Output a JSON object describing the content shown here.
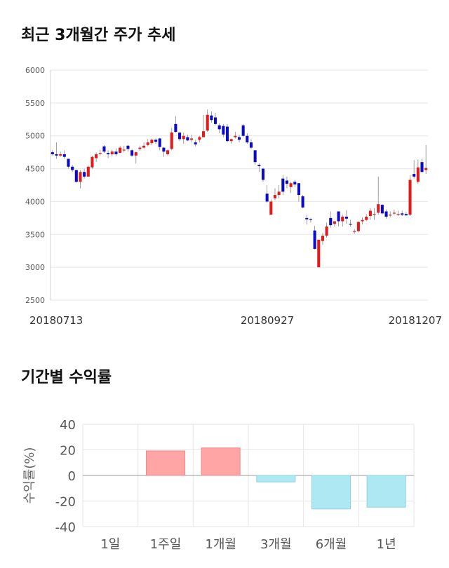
{
  "sections": {
    "price_title": "최근 3개월간 주가 추세",
    "returns_title": "기간별 수익률"
  },
  "colors": {
    "up": "#e01b1b",
    "down": "#0c0cc8",
    "pos_bar": "#ffa5a5",
    "neg_bar": "#aee8f2",
    "grid": "#e6e6e6"
  },
  "chart_data": [
    {
      "type": "candlestick",
      "title": "최근 3개월간 주가 추세",
      "ylim": [
        2500,
        6000
      ],
      "yticks": [
        "6000",
        "5500",
        "5000",
        "4500",
        "4000",
        "3500",
        "3000",
        "2500"
      ],
      "xticks": [
        "20180713",
        "20180927",
        "20181207"
      ],
      "ohlc": [
        [
          4750,
          4780,
          4700,
          4720
        ],
        [
          4720,
          4900,
          4650,
          4700
        ],
        [
          4700,
          4760,
          4680,
          4720
        ],
        [
          4720,
          4780,
          4650,
          4680
        ],
        [
          4650,
          4650,
          4500,
          4530
        ],
        [
          4530,
          4560,
          4450,
          4480
        ],
        [
          4480,
          4480,
          4290,
          4300
        ],
        [
          4300,
          4480,
          4200,
          4450
        ],
        [
          4450,
          4500,
          4350,
          4380
        ],
        [
          4380,
          4550,
          4380,
          4530
        ],
        [
          4520,
          4700,
          4500,
          4680
        ],
        [
          4660,
          4750,
          4600,
          4720
        ],
        [
          4740,
          4790,
          4700,
          4740
        ],
        [
          4840,
          4860,
          4740,
          4760
        ],
        [
          4740,
          4780,
          4660,
          4720
        ],
        [
          4720,
          4790,
          4690,
          4760
        ],
        [
          4760,
          4810,
          4700,
          4720
        ],
        [
          4740,
          4850,
          4740,
          4820
        ],
        [
          4780,
          4850,
          4750,
          4790
        ],
        [
          4850,
          4860,
          4760,
          4800
        ],
        [
          4780,
          4800,
          4680,
          4700
        ],
        [
          4700,
          4760,
          4580,
          4750
        ],
        [
          4800,
          4850,
          4770,
          4820
        ],
        [
          4820,
          4900,
          4800,
          4850
        ],
        [
          4860,
          4950,
          4840,
          4900
        ],
        [
          4890,
          4960,
          4860,
          4940
        ],
        [
          4940,
          4960,
          4880,
          4910
        ],
        [
          4960,
          4970,
          4780,
          4830
        ],
        [
          4820,
          4830,
          4680,
          4760
        ],
        [
          4720,
          4800,
          4700,
          4780
        ],
        [
          4800,
          5120,
          4780,
          5050
        ],
        [
          5180,
          5300,
          5050,
          5060
        ],
        [
          5050,
          5050,
          4920,
          4950
        ],
        [
          4950,
          5050,
          4880,
          5000
        ],
        [
          4980,
          5020,
          4920,
          4930
        ],
        [
          4940,
          5020,
          4900,
          4960
        ],
        [
          4900,
          4940,
          4840,
          4870
        ],
        [
          4940,
          5000,
          4900,
          4980
        ],
        [
          4980,
          5320,
          4980,
          5070
        ],
        [
          5080,
          5400,
          5060,
          5320
        ],
        [
          5310,
          5370,
          5200,
          5240
        ],
        [
          5280,
          5350,
          5160,
          5180
        ],
        [
          5160,
          5190,
          5040,
          5100
        ],
        [
          5150,
          5180,
          4980,
          5020
        ],
        [
          5140,
          5180,
          4900,
          4920
        ],
        [
          4920,
          4960,
          4880,
          4950
        ],
        [
          4980,
          5060,
          4960,
          5000
        ],
        [
          4980,
          5020,
          4900,
          4940
        ],
        [
          5160,
          5180,
          4980,
          5000
        ],
        [
          5000,
          5040,
          4880,
          4900
        ],
        [
          4900,
          4950,
          4800,
          4820
        ],
        [
          4780,
          4780,
          4560,
          4600
        ],
        [
          4560,
          4580,
          4450,
          4540
        ],
        [
          4500,
          4510,
          4300,
          4330
        ],
        [
          4120,
          4250,
          3980,
          4000
        ],
        [
          3800,
          4030,
          3800,
          4000
        ],
        [
          4050,
          4200,
          4020,
          4100
        ],
        [
          4100,
          4250,
          4050,
          4150
        ],
        [
          4350,
          4400,
          4100,
          4150
        ],
        [
          4320,
          4380,
          4200,
          4270
        ],
        [
          4220,
          4300,
          4130,
          4280
        ],
        [
          4300,
          4330,
          4220,
          4260
        ],
        [
          4280,
          4280,
          4000,
          4100
        ],
        [
          4080,
          4100,
          3900,
          3910
        ],
        [
          3750,
          3800,
          3650,
          3730
        ],
        [
          3730,
          3750,
          3680,
          3720
        ],
        [
          3560,
          3630,
          3270,
          3280
        ],
        [
          3000,
          3400,
          3000,
          3420
        ],
        [
          3400,
          3520,
          3340,
          3480
        ],
        [
          3480,
          3680,
          3450,
          3620
        ],
        [
          3750,
          3850,
          3600,
          3640
        ],
        [
          3660,
          3700,
          3620,
          3700
        ],
        [
          3850,
          3850,
          3620,
          3700
        ],
        [
          3700,
          3800,
          3620,
          3770
        ],
        [
          3770,
          3870,
          3660,
          3740
        ],
        [
          3660,
          3720,
          3620,
          3650
        ],
        [
          3540,
          3580,
          3510,
          3550
        ],
        [
          3550,
          3700,
          3530,
          3690
        ],
        [
          3700,
          3760,
          3650,
          3720
        ],
        [
          3720,
          3810,
          3700,
          3770
        ],
        [
          3780,
          3900,
          3720,
          3860
        ],
        [
          3800,
          3900,
          3720,
          3810
        ],
        [
          3830,
          4380,
          3800,
          3960
        ],
        [
          3950,
          3960,
          3800,
          3820
        ],
        [
          3850,
          3880,
          3740,
          3770
        ],
        [
          3790,
          3850,
          3760,
          3800
        ],
        [
          3830,
          3880,
          3790,
          3830
        ],
        [
          3810,
          3860,
          3780,
          3810
        ],
        [
          3820,
          3860,
          3780,
          3800
        ],
        [
          3810,
          3840,
          3780,
          3790
        ],
        [
          3800,
          4400,
          3780,
          4330
        ],
        [
          4420,
          4630,
          4350,
          4380
        ],
        [
          4300,
          4640,
          4270,
          4520
        ],
        [
          4600,
          4650,
          4450,
          4450
        ],
        [
          4480,
          4860,
          4420,
          4510
        ]
      ]
    },
    {
      "type": "bar",
      "title": "기간별 수익률",
      "ylabel": "수익률(%)",
      "ylim": [
        -40,
        40
      ],
      "yticks": [
        40,
        20,
        0,
        -20,
        -40
      ],
      "categories": [
        "1일",
        "1주일",
        "1개월",
        "3개월",
        "6개월",
        "1년"
      ],
      "values": [
        0,
        19.2,
        21.5,
        -5.1,
        -26.2,
        -24.8
      ]
    }
  ]
}
